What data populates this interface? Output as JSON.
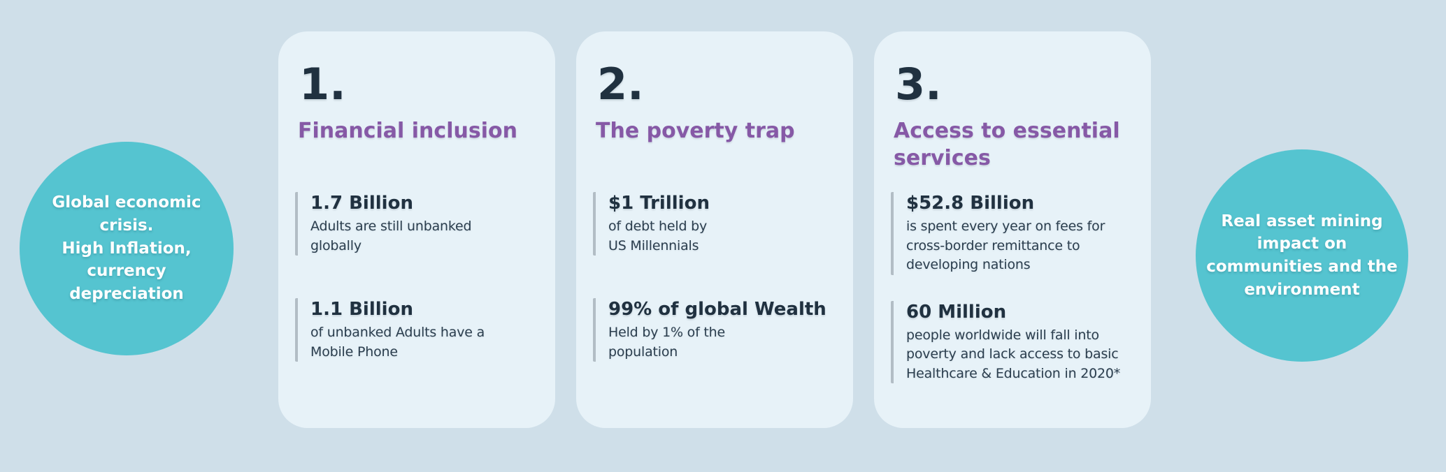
{
  "colors": {
    "bg": "#cfdfe9",
    "card-bg": "#e7f2f8",
    "teal": "#55c4d0",
    "purple": "#8659a6",
    "ink-dark": "#203140",
    "ink-body": "#2b3e4e",
    "bar": "#b2bdc5"
  },
  "left_circle": {
    "text": "Global economic\ncrisis.\nHigh Inflation,\ncurrency\ndepreciation"
  },
  "right_circle": {
    "text": "Real asset  mining\nimpact on\ncommunities and the\nenvironment"
  },
  "cards": [
    {
      "number": "1.",
      "title": "Financial inclusion",
      "stats": [
        {
          "value": "1.7 Billion",
          "description": "Adults are still unbanked\nglobally"
        },
        {
          "value": "1.1 Billion",
          "description": "of unbanked Adults have a\nMobile Phone"
        }
      ]
    },
    {
      "number": "2.",
      "title": "The poverty trap",
      "stats": [
        {
          "value": "$1 Trillion",
          "description": "of debt held by\nUS Millennials"
        },
        {
          "value": "99% of global Wealth",
          "description": "Held by 1% of the\npopulation"
        }
      ]
    },
    {
      "number": "3.",
      "title": "Access to essential\nservices",
      "stats": [
        {
          "value": "$52.8 Billion",
          "description": "is spent every year on fees for\ncross-border remittance to\ndeveloping nations"
        },
        {
          "value": "60 Million",
          "description": "people worldwide will fall into\npoverty and lack access to basic\nHealthcare & Education in 2020*"
        }
      ]
    }
  ]
}
